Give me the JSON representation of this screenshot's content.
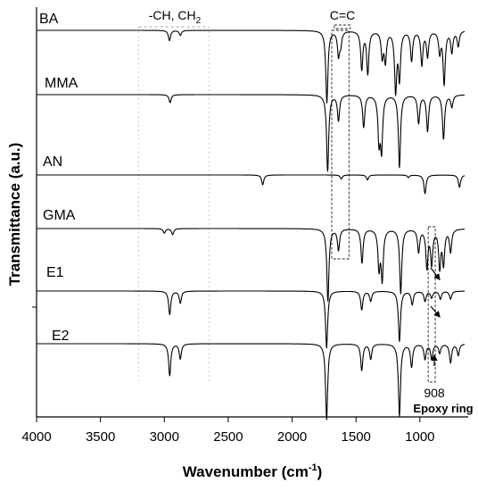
{
  "chart_data": {
    "type": "line",
    "xlabel_main": "Wavenumber (cm",
    "xlabel_sup": "-1",
    "xlabel_tail": ")",
    "ylabel": "Transmittance (a.u.)",
    "xlim": [
      4000,
      650
    ],
    "x_reversed": true,
    "x_ticks": [
      "4000",
      "3500",
      "3000",
      "2500",
      "2000",
      "1500",
      "1000"
    ],
    "x_tick_values": [
      4000,
      3500,
      3000,
      2500,
      2000,
      1500,
      1000
    ],
    "y_ticks_labeled": false,
    "grid": false,
    "legend": "none",
    "annotations": {
      "ch_main": "-CH, CH",
      "ch_sub": "2",
      "cc": "C=C",
      "wn908": "908",
      "epoxy": "Epoxy ring"
    },
    "series": [
      {
        "name": "BA",
        "baseline": 0,
        "peaks": [
          [
            2960,
            0.12
          ],
          [
            2875,
            0.06
          ],
          [
            1728,
            0.85
          ],
          [
            1637,
            0.28
          ],
          [
            1620,
            0.15
          ],
          [
            1455,
            0.45
          ],
          [
            1408,
            0.5
          ],
          [
            1295,
            0.3
          ],
          [
            1270,
            0.35
          ],
          [
            1190,
            0.7
          ],
          [
            1160,
            0.55
          ],
          [
            1065,
            0.35
          ],
          [
            985,
            0.4
          ],
          [
            940,
            0.3
          ],
          [
            845,
            0.25
          ],
          [
            810,
            0.62
          ],
          [
            750,
            0.25
          ],
          [
            700,
            0.18
          ]
        ]
      },
      {
        "name": "MMA",
        "baseline": 0,
        "peaks": [
          [
            2955,
            0.1
          ],
          [
            1722,
            0.95
          ],
          [
            1637,
            0.32
          ],
          [
            1440,
            0.4
          ],
          [
            1320,
            0.55
          ],
          [
            1300,
            0.65
          ],
          [
            1160,
            0.9
          ],
          [
            1010,
            0.35
          ],
          [
            940,
            0.45
          ],
          [
            815,
            0.55
          ],
          [
            750,
            0.15
          ]
        ]
      },
      {
        "name": "AN",
        "baseline": 0,
        "peaks": [
          [
            2230,
            0.2
          ],
          [
            1615,
            0.08
          ],
          [
            1410,
            0.1
          ],
          [
            1090,
            0.05
          ],
          [
            960,
            0.38
          ],
          [
            690,
            0.25
          ]
        ]
      },
      {
        "name": "GMA",
        "baseline": 0,
        "peaks": [
          [
            3000,
            0.06
          ],
          [
            2935,
            0.08
          ],
          [
            1720,
            0.95
          ],
          [
            1637,
            0.28
          ],
          [
            1453,
            0.45
          ],
          [
            1320,
            0.5
          ],
          [
            1295,
            0.65
          ],
          [
            1150,
            0.85
          ],
          [
            1010,
            0.3
          ],
          [
            945,
            0.5
          ],
          [
            908,
            0.45
          ],
          [
            845,
            0.5
          ],
          [
            815,
            0.45
          ],
          [
            760,
            0.3
          ]
        ]
      },
      {
        "name": "E1",
        "baseline": 0,
        "peaks": [
          [
            2958,
            0.35
          ],
          [
            2875,
            0.18
          ],
          [
            1730,
            0.85
          ],
          [
            1455,
            0.28
          ],
          [
            1385,
            0.15
          ],
          [
            1160,
            0.75
          ],
          [
            1060,
            0.2
          ],
          [
            960,
            0.15
          ],
          [
            908,
            0.1
          ],
          [
            840,
            0.12
          ],
          [
            760,
            0.12
          ]
        ]
      },
      {
        "name": "E2",
        "baseline": 0,
        "peaks": [
          [
            2958,
            0.42
          ],
          [
            2875,
            0.2
          ],
          [
            1730,
            1.0
          ],
          [
            1455,
            0.35
          ],
          [
            1385,
            0.2
          ],
          [
            1160,
            0.95
          ],
          [
            1065,
            0.3
          ],
          [
            960,
            0.2
          ],
          [
            908,
            0.2
          ],
          [
            845,
            0.12
          ],
          [
            760,
            0.25
          ],
          [
            700,
            0.15
          ]
        ]
      }
    ]
  }
}
